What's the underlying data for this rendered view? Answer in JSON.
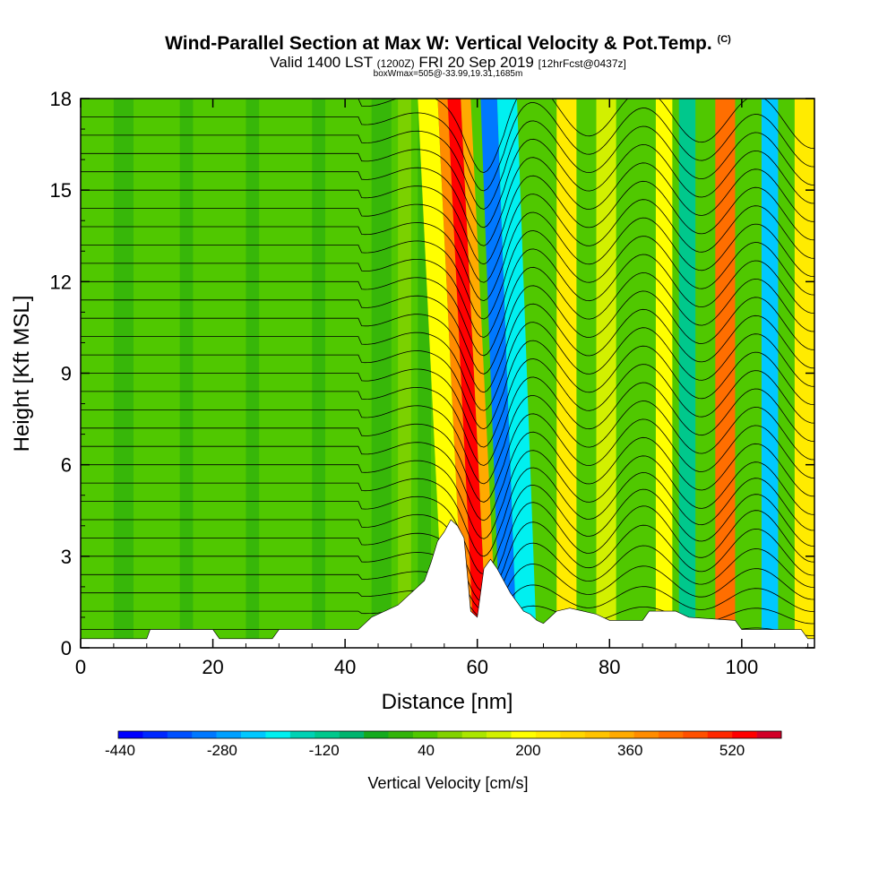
{
  "header": {
    "title_main": "Wind-Parallel Section at Max W: Vertical Velocity & Pot.Temp.",
    "title_mark": "(C)",
    "valid_prefix": "Valid 1400 LST",
    "valid_zulu": "(1200Z)",
    "valid_date": "FRI 20 Sep 2019",
    "valid_fcst": "[12hrFcst@0437z]",
    "box_info": "boxWmax=505@-33.99,19.31,1685m"
  },
  "chart_data": {
    "type": "heatmap",
    "title": "Wind-Parallel Section at Max W: Vertical Velocity & Pot.Temp.",
    "xlabel": "Distance [nm]",
    "ylabel": "Height [Kft MSL]",
    "xlim": [
      0,
      111
    ],
    "ylim": [
      0,
      18
    ],
    "x_ticks": [
      0,
      20,
      40,
      60,
      80,
      100
    ],
    "y_ticks": [
      0,
      3,
      6,
      9,
      12,
      15,
      18
    ],
    "grid": false,
    "legend": "colorbar-bottom",
    "colorbar": {
      "title": "Vertical Velocity [cm/s]",
      "min": -440,
      "max": 600,
      "step": 40,
      "tick_labels": [
        -440,
        -280,
        -120,
        40,
        200,
        360,
        520
      ],
      "colors": [
        "#0000ff",
        "#0028ff",
        "#0050ff",
        "#0078ff",
        "#00a0ff",
        "#00c8ff",
        "#00f0f0",
        "#00d2b4",
        "#00c88c",
        "#00b46e",
        "#14aa1e",
        "#32b40a",
        "#50c800",
        "#82d200",
        "#aae600",
        "#d2f000",
        "#ffff00",
        "#ffeb00",
        "#ffd700",
        "#ffc300",
        "#ffaa00",
        "#ff8c00",
        "#ff6e00",
        "#ff5000",
        "#ff2800",
        "#ff0000",
        "#d20028"
      ]
    },
    "terrain_profile": {
      "x": [
        0,
        10,
        10.5,
        20,
        21,
        29,
        30,
        42,
        43,
        44,
        46,
        48,
        50,
        52,
        53,
        54,
        55,
        56,
        57,
        58,
        59,
        60,
        61,
        62,
        63,
        64,
        65,
        66,
        67,
        68,
        69,
        70,
        71,
        72,
        74,
        76,
        78,
        80,
        85,
        86,
        90,
        92,
        99,
        100,
        109,
        110,
        111
      ],
      "height": [
        0.3,
        0.3,
        0.6,
        0.6,
        0.3,
        0.3,
        0.6,
        0.6,
        0.8,
        1.0,
        1.2,
        1.4,
        1.8,
        2.2,
        2.8,
        3.5,
        3.8,
        4.2,
        4.0,
        3.6,
        1.2,
        1.0,
        2.6,
        2.9,
        2.6,
        2.2,
        1.8,
        1.5,
        1.2,
        1.1,
        0.9,
        0.8,
        1.0,
        1.2,
        1.3,
        1.2,
        1.1,
        0.9,
        0.9,
        1.2,
        1.2,
        1.0,
        0.9,
        0.6,
        0.6,
        0.3,
        0.3
      ]
    },
    "velocity_bands": [
      {
        "x": 55,
        "width": 3,
        "value": 200
      },
      {
        "x": 58,
        "width": 1.8,
        "value": 400
      },
      {
        "x": 59.5,
        "width": 2,
        "value": 560
      },
      {
        "x": 61.5,
        "width": 1.5,
        "value": 360
      },
      {
        "x": 63.5,
        "width": 2.5,
        "value": -320
      },
      {
        "x": 66,
        "width": 3,
        "value": -200
      },
      {
        "x": 72,
        "width": 3,
        "value": 240
      },
      {
        "x": 78,
        "width": 3,
        "value": 160
      },
      {
        "x": 83,
        "width": 2.5,
        "value": 40
      },
      {
        "x": 87,
        "width": 2.5,
        "value": 200
      },
      {
        "x": 90.5,
        "width": 2.5,
        "value": -120
      },
      {
        "x": 96,
        "width": 3,
        "value": 440
      },
      {
        "x": 100,
        "width": 3,
        "value": 40
      },
      {
        "x": 103,
        "width": 2.5,
        "value": -240
      },
      {
        "x": 108,
        "width": 3,
        "value": 240
      }
    ],
    "isentropes_count": 30
  }
}
